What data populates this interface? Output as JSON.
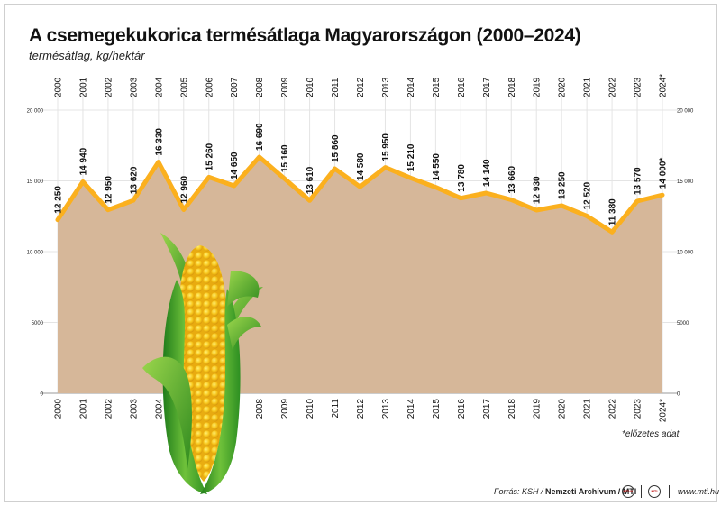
{
  "chart_data": {
    "type": "area",
    "title": "A  csemegekukorica termésátlaga Magyarországon (2000–2024)",
    "subtitle": "termésátlag, kg/hektár",
    "categories": [
      "2000",
      "2001",
      "2002",
      "2003",
      "2004",
      "2005",
      "2006",
      "2007",
      "2008",
      "2009",
      "2010",
      "2011",
      "2012",
      "2013",
      "2014",
      "2015",
      "2016",
      "2017",
      "2018",
      "2019",
      "2020",
      "2021",
      "2022",
      "2023",
      "2024*"
    ],
    "values": [
      12250,
      14940,
      12950,
      13620,
      16330,
      12960,
      15260,
      14650,
      16690,
      15160,
      13610,
      15860,
      14580,
      15950,
      15210,
      14550,
      13780,
      14140,
      13660,
      12930,
      13250,
      12520,
      11380,
      13570,
      14000
    ],
    "value_labels": [
      "12 250",
      "14 940",
      "12 950",
      "13 620",
      "16 330",
      "12 960",
      "15 260",
      "14 650",
      "16 690",
      "15 160",
      "13 610",
      "15 860",
      "14 580",
      "15 950",
      "15 210",
      "14 550",
      "13 780",
      "14 140",
      "13 660",
      "12 930",
      "13 250",
      "12 520",
      "11 380",
      "13 570",
      "14 000*"
    ],
    "ylim": [
      0,
      20000
    ],
    "yticks": [
      0,
      5000,
      10000,
      15000,
      20000
    ],
    "ytick_labels": [
      "0",
      "5000",
      "10 000",
      "15 000",
      "20 000"
    ],
    "grid": true,
    "colors": {
      "area": "#d6b799",
      "line": "#fbb01e",
      "grid": "#e4e4e4"
    },
    "note": "*előzetes adat"
  },
  "footer": {
    "source_prefix": "Forrás: KSH / ",
    "source_bold": "Nemzeti Archívum / MTI",
    "badge1": "MTVA",
    "badge2": "MTI",
    "url": "www.mti.hu"
  },
  "illustration": {
    "icon": "corn-cob-icon"
  }
}
